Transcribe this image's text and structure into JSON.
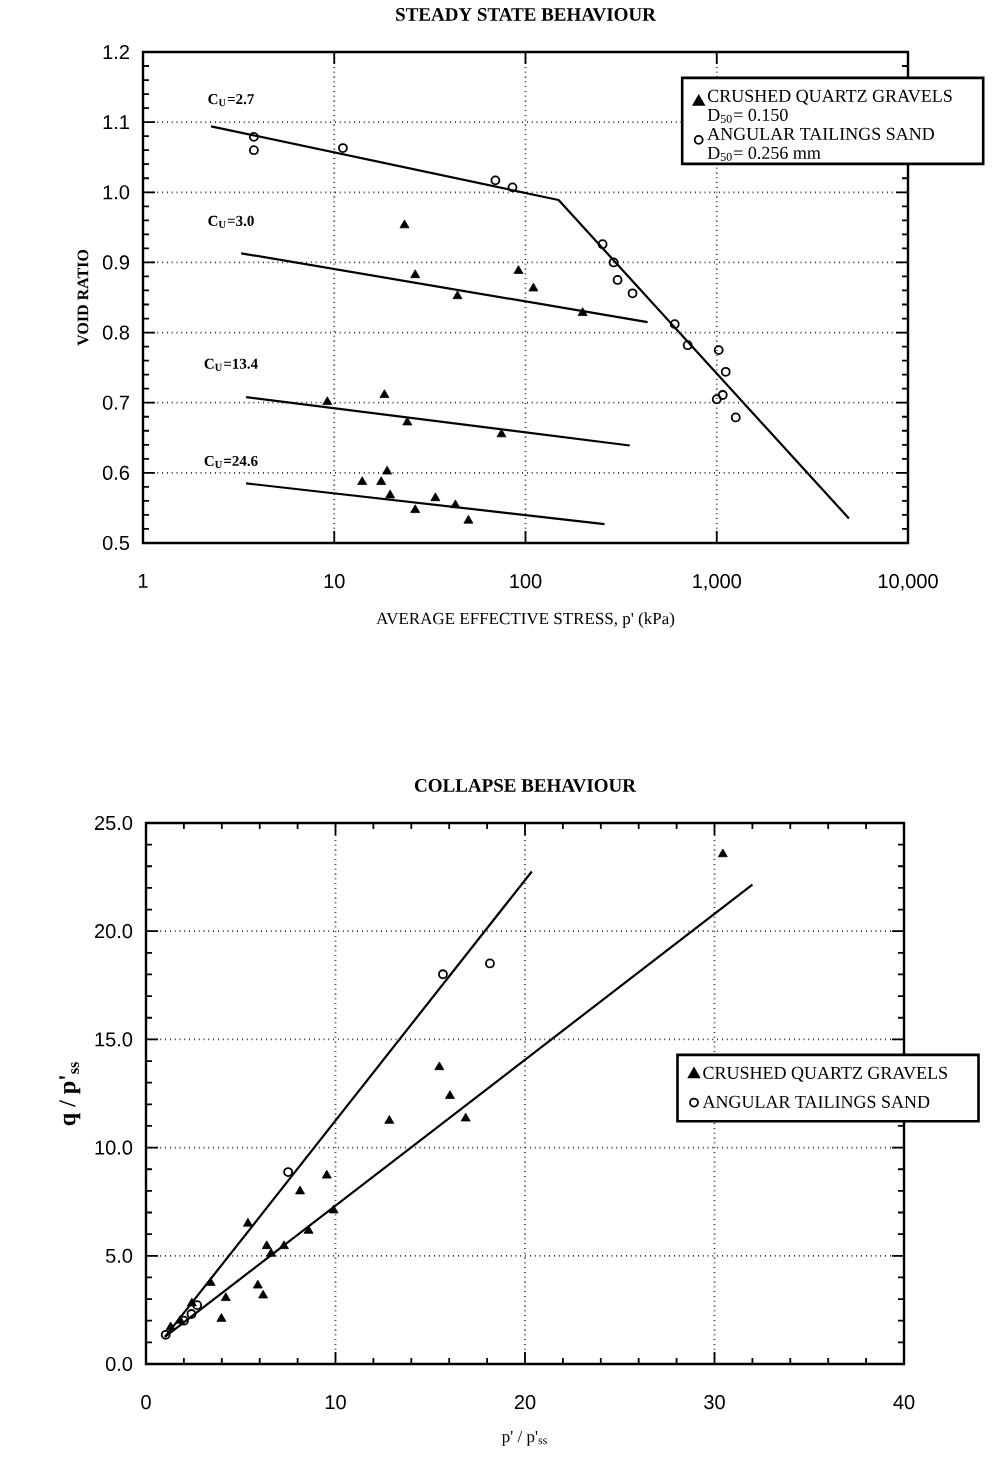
{
  "chart_data": [
    {
      "type": "scatter",
      "title": "STEADY STATE BEHAVIOUR",
      "xlabel": "AVERAGE EFFECTIVE STRESS, p' (kPa)",
      "ylabel": "VOID RATIO",
      "log": "x",
      "grid": true,
      "legend": "top right",
      "xlim": [
        1,
        10000
      ],
      "ylim": [
        0.5,
        1.2
      ],
      "xticks": [
        1,
        10,
        100,
        {
          "value": 1000,
          "label": "1,000"
        },
        {
          "value": 10000,
          "label": "10,000"
        }
      ],
      "yticks": [
        {
          "value": 0.5,
          "label": "0.5"
        },
        {
          "value": 0.6,
          "label": "0.6"
        },
        {
          "value": 0.7,
          "label": "0.7"
        },
        {
          "value": 0.8,
          "label": "0.8"
        },
        {
          "value": 0.9,
          "label": "0.9"
        },
        {
          "value": 1.0,
          "label": "1.0"
        },
        {
          "value": 1.1,
          "label": "1.1"
        },
        {
          "value": 1.2,
          "label": "1.2"
        }
      ],
      "series": [
        {
          "name": "CRUSHED QUARTZ GRAVELS D$_{50}$= 0.150",
          "marker": "triangle",
          "color": "#000000",
          "x": [
            23.3,
            26.5,
            44.1,
            91.9,
            110,
            199,
            9.2,
            18.3,
            24.1,
            74.9,
            14.0,
            17.6,
            18.9,
            19.6,
            26.5,
            33.8,
            43.0,
            50.3
          ],
          "values": [
            0.953,
            0.882,
            0.852,
            0.888,
            0.863,
            0.828,
            0.701,
            0.711,
            0.672,
            0.655,
            0.587,
            0.587,
            0.602,
            0.568,
            0.547,
            0.564,
            0.554,
            0.532
          ]
        },
        {
          "name": "ANGULAR TAILINGS SAND D$_{50}$= 0.256 mm",
          "marker": "circle",
          "color": "#000000",
          "x": [
            3.8,
            3.8,
            11.1,
            69.6,
            85.5,
            253,
            289,
            303,
            363,
            603,
            705,
            1024,
            1114,
            1075,
            1000,
            1257
          ],
          "values": [
            1.079,
            1.06,
            1.063,
            1.017,
            1.007,
            0.926,
            0.9,
            0.875,
            0.856,
            0.812,
            0.782,
            0.775,
            0.744,
            0.711,
            0.705,
            0.679
          ]
        },
        {
          "type": "line",
          "marker": "none",
          "color": "#000000",
          "x": [
            2.27,
            149,
            4910
          ],
          "values": [
            1.094,
            0.989,
            0.535
          ]
        },
        {
          "type": "line",
          "marker": "none",
          "color": "#000000",
          "x": [
            3.26,
            435
          ],
          "values": [
            0.913,
            0.815
          ]
        },
        {
          "type": "line",
          "marker": "none",
          "color": "#000000",
          "x": [
            3.46,
            351
          ],
          "values": [
            0.708,
            0.639
          ]
        },
        {
          "type": "line",
          "marker": "none",
          "color": "#000000",
          "x": [
            3.46,
            259
          ],
          "values": [
            0.585,
            0.527
          ]
        }
      ],
      "annotations": [
        "C$_{U}$=2.7",
        "C$_{U}$=3.0",
        "C$_{U}$=13.4",
        "C$_{U}$=24.6"
      ]
    },
    {
      "type": "scatter",
      "title": "COLLAPSE BEHAVIOUR",
      "xlabel": "p' / p'$_{ss}$",
      "ylabel": "q / p'$_{ss}$",
      "grid": true,
      "legend": "right",
      "xlim": [
        0,
        40
      ],
      "ylim": [
        0,
        25
      ],
      "xticks": [
        0,
        10,
        20,
        30,
        40
      ],
      "yticks": [
        {
          "value": 0,
          "label": "0.0"
        },
        {
          "value": 5,
          "label": "5.0"
        },
        {
          "value": 10,
          "label": "10.0"
        },
        {
          "value": 15,
          "label": "15.0"
        },
        {
          "value": 20,
          "label": "20.0"
        },
        {
          "value": 25,
          "label": "25.0"
        }
      ],
      "series": [
        {
          "name": "CRUSHED QUARTZ GRAVELS",
          "marker": "triangle",
          "color": "#000000",
          "x": [
            1.3,
            1.8,
            2.42,
            3.41,
            3.98,
            4.21,
            5.38,
            5.9,
            6.18,
            6.37,
            6.6,
            7.28,
            8.13,
            8.58,
            9.54,
            9.9,
            12.84,
            15.48,
            16.04,
            16.87,
            30.44
          ],
          "values": [
            1.7,
            2.0,
            2.8,
            3.75,
            2.09,
            3.05,
            6.49,
            3.63,
            3.17,
            5.45,
            5.1,
            5.45,
            7.98,
            6.16,
            8.71,
            7.1,
            11.24,
            13.72,
            12.39,
            11.35,
            23.56
          ]
        },
        {
          "name": "ANGULAR TAILINGS SAND",
          "marker": "circle",
          "color": "#000000",
          "x": [
            1.04,
            2.0,
            2.4,
            2.7,
            7.5,
            15.67,
            18.15
          ],
          "values": [
            1.35,
            2.0,
            2.31,
            2.72,
            8.87,
            18.01,
            18.51
          ]
        },
        {
          "type": "line",
          "marker": "none",
          "color": "#000000",
          "x": [
            1.0,
            20.36
          ],
          "values": [
            1.25,
            22.76
          ]
        },
        {
          "type": "line",
          "marker": "none",
          "color": "#000000",
          "x": [
            1.0,
            32.0
          ],
          "values": [
            1.25,
            22.15
          ]
        }
      ]
    }
  ]
}
